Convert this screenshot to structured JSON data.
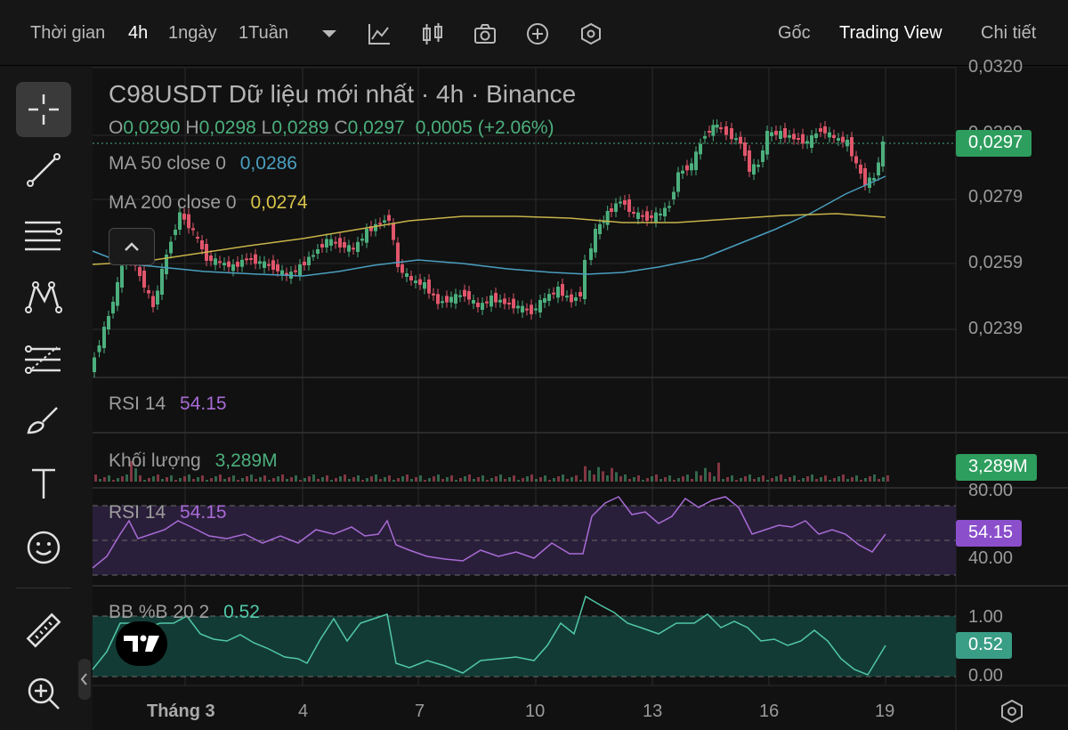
{
  "topbar": {
    "time_label": "Thời gian",
    "intervals": [
      "4h",
      "1ngày",
      "1Tuần"
    ],
    "active_interval": "4h",
    "views": [
      "Gốc",
      "Trading View",
      "Chi tiết"
    ],
    "active_view": "Trading View"
  },
  "symbol_title": "C98USDT Dữ liệu mới nhất · 4h · Binance",
  "ohlc": {
    "o_label": "O",
    "o_value": "0,0290",
    "h_label": "H",
    "h_value": "0,0298",
    "l_label": "L",
    "l_value": "0,0289",
    "c_label": "C",
    "c_value": "0,0297",
    "change": "0,0005 (+2.06%)"
  },
  "indicators": {
    "ma50_label": "MA 50 close 0",
    "ma50_value": "0,0286",
    "ma200_label": "MA 200 close 0",
    "ma200_value": "0,0274",
    "rsi_collapsed_label": "RSI 14",
    "rsi_collapsed_value": "54.15",
    "volume_label": "Khối lượng",
    "volume_value": "3,289M",
    "rsi_label": "RSI 14",
    "rsi_value": "54.15",
    "bb_label": "BB %B 20 2",
    "bb_value": "0.52"
  },
  "price_axis": [
    "0,0320",
    "0,0299",
    "0,0279",
    "0,0259",
    "0,0239"
  ],
  "price_badge": "0,0297",
  "volume_badge": "3,289M",
  "rsi_axis": [
    "80.00",
    "40.00"
  ],
  "rsi_badge": "54.15",
  "bb_axis": [
    "1.00",
    "0.00"
  ],
  "bb_badge": "0.52",
  "dates": [
    "Tháng 3",
    "4",
    "7",
    "10",
    "13",
    "16",
    "19"
  ],
  "colors": {
    "up": "#4caf7d",
    "down": "#e0566b",
    "ma50": "#4a9fc0",
    "ma200": "#c8b44a",
    "rsi": "#a86bd6",
    "bb": "#50c8a8",
    "price_badge": "#2e9e5e",
    "rsi_badge": "#8b4fcc",
    "bb_badge": "#3a9e86"
  },
  "icons": {
    "chart_type": "line-chart-icon",
    "candles": "candlestick-icon",
    "screenshot": "camera-icon",
    "add_indicator": "plus-circle-icon",
    "settings": "hexagon-settings-icon"
  },
  "chart_data": {
    "type": "line",
    "title": "C98USDT Dữ liệu mới nhất · 4h · Binance",
    "x": [
      "Tháng 3",
      "4",
      "7",
      "10",
      "13",
      "16",
      "19"
    ],
    "close_approx": [
      0.0262,
      0.0262,
      0.0261,
      0.0248,
      0.0252,
      0.0301,
      0.0302,
      0.0297
    ],
    "last_close": 0.0297,
    "ylim": [
      0.0225,
      0.0325
    ],
    "rsi_last": 54.15,
    "bb_last": 0.52,
    "volume_last": "3,289M"
  }
}
